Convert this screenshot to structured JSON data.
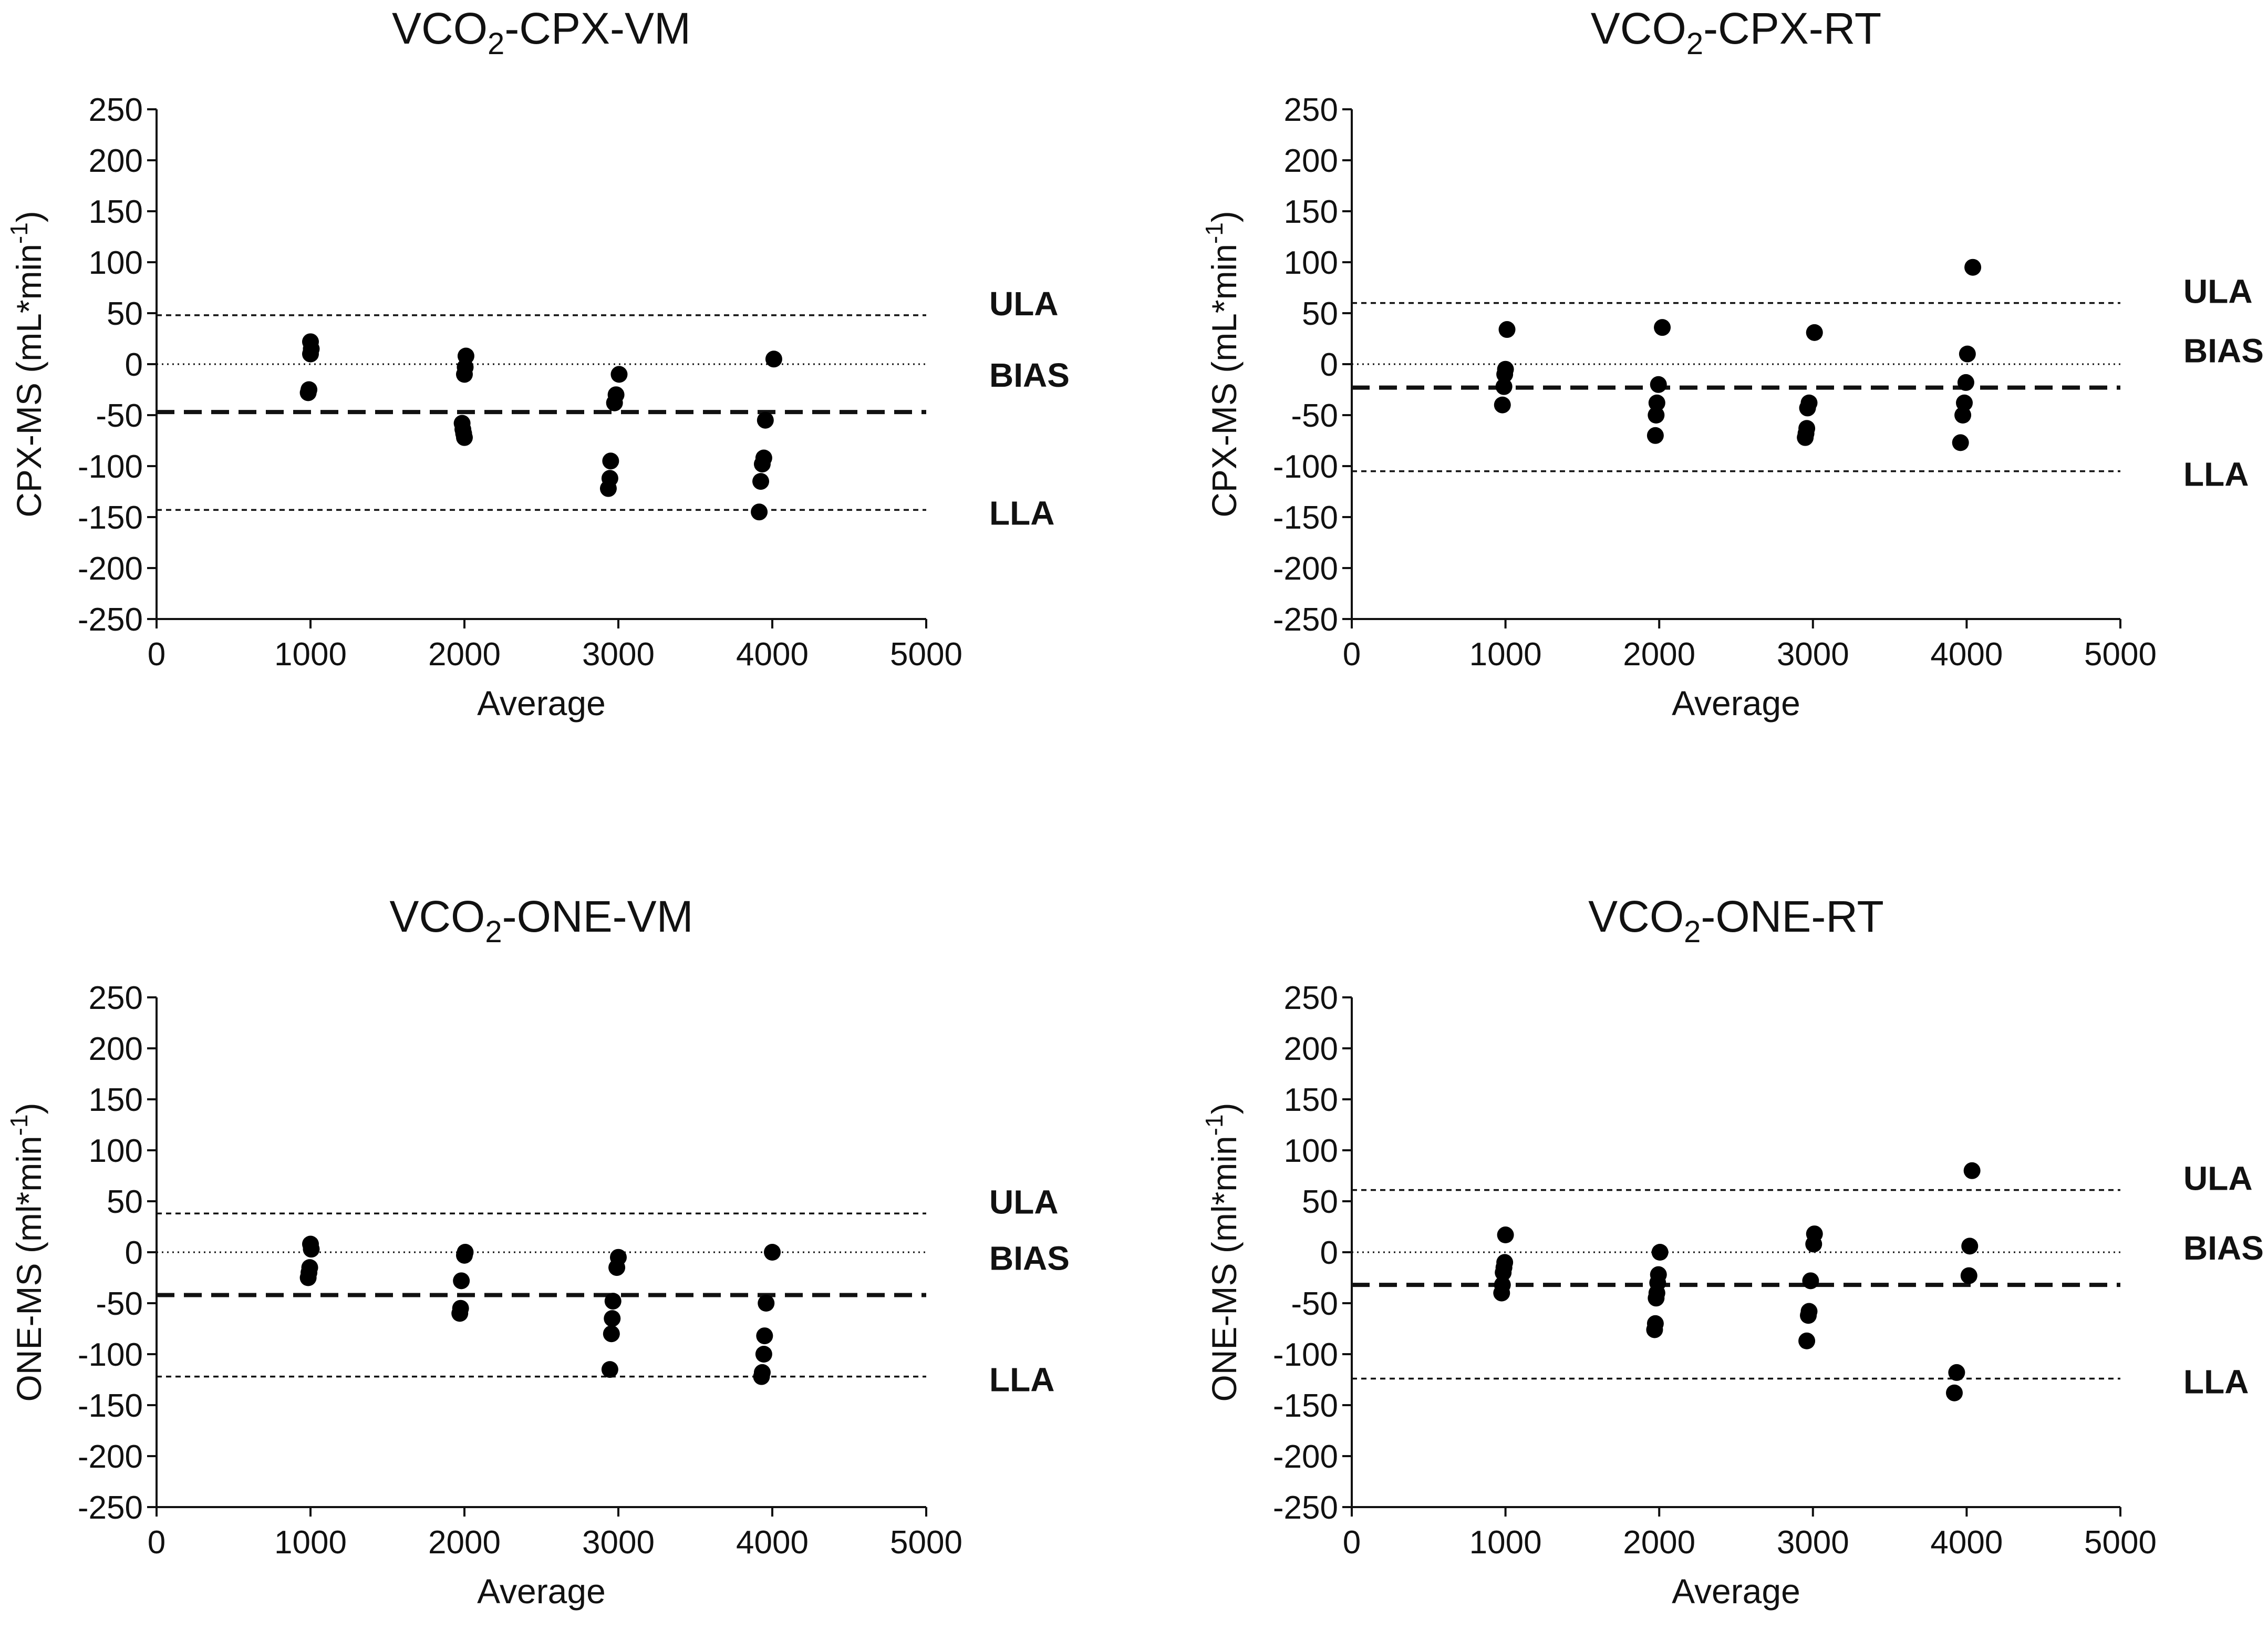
{
  "chart_data": [
    {
      "type": "scatter",
      "title": {
        "prefix": "VCO",
        "sub": "2",
        "suffix": "-CPX-VM"
      },
      "xlabel": "Average",
      "ylabel": {
        "base": "CPX-MS (mL*min",
        "sup": "-1",
        "close": ")"
      },
      "xlim": [
        0,
        5000
      ],
      "ylim": [
        -250,
        250
      ],
      "xticks": [
        "0",
        "1000",
        "2000",
        "3000",
        "4000",
        "5000"
      ],
      "yticks": [
        "250",
        "200",
        "150",
        "100",
        "50",
        "0",
        "-50",
        "-100",
        "-150",
        "-200",
        "-250"
      ],
      "lines": {
        "ULA": 48,
        "BIAS": -47,
        "LLA": -143,
        "zero": 0
      },
      "line_labels": {
        "ULA": "ULA",
        "BIAS": "BIAS",
        "LLA": "LLA"
      },
      "points": [
        [
          1000,
          22
        ],
        [
          1005,
          15
        ],
        [
          1000,
          10
        ],
        [
          990,
          -25
        ],
        [
          985,
          -28
        ],
        [
          2010,
          8
        ],
        [
          2005,
          -3
        ],
        [
          2000,
          -10
        ],
        [
          1985,
          -58
        ],
        [
          1990,
          -64
        ],
        [
          1995,
          -68
        ],
        [
          2000,
          -72
        ],
        [
          3005,
          -10
        ],
        [
          2985,
          -30
        ],
        [
          2975,
          -38
        ],
        [
          2950,
          -95
        ],
        [
          2945,
          -112
        ],
        [
          2935,
          -122
        ],
        [
          4010,
          5
        ],
        [
          3955,
          -55
        ],
        [
          3945,
          -92
        ],
        [
          3935,
          -98
        ],
        [
          3925,
          -115
        ],
        [
          3915,
          -145
        ]
      ]
    },
    {
      "type": "scatter",
      "title": {
        "prefix": "VCO",
        "sub": "2",
        "suffix": "-CPX-RT"
      },
      "xlabel": "Average",
      "ylabel": {
        "base": "CPX-MS (mL*min",
        "sup": "-1",
        "close": ")"
      },
      "xlim": [
        0,
        5000
      ],
      "ylim": [
        -250,
        250
      ],
      "xticks": [
        "0",
        "1000",
        "2000",
        "3000",
        "4000",
        "5000"
      ],
      "yticks": [
        "250",
        "200",
        "150",
        "100",
        "50",
        "0",
        "-50",
        "-100",
        "-150",
        "-200",
        "-250"
      ],
      "lines": {
        "ULA": 60,
        "BIAS": -23,
        "LLA": -105,
        "zero": 0
      },
      "line_labels": {
        "ULA": "ULA",
        "BIAS": "BIAS",
        "LLA": "LLA"
      },
      "points": [
        [
          1010,
          34
        ],
        [
          1000,
          -5
        ],
        [
          995,
          -10
        ],
        [
          990,
          -22
        ],
        [
          980,
          -40
        ],
        [
          2020,
          36
        ],
        [
          1995,
          -20
        ],
        [
          1985,
          -38
        ],
        [
          1980,
          -50
        ],
        [
          1975,
          -70
        ],
        [
          3010,
          31
        ],
        [
          2975,
          -38
        ],
        [
          2965,
          -43
        ],
        [
          2960,
          -63
        ],
        [
          2955,
          -68
        ],
        [
          2950,
          -72
        ],
        [
          4040,
          95
        ],
        [
          4005,
          10
        ],
        [
          3995,
          -18
        ],
        [
          3985,
          -38
        ],
        [
          3975,
          -50
        ],
        [
          3960,
          -77
        ]
      ]
    },
    {
      "type": "scatter",
      "title": {
        "prefix": "VCO",
        "sub": "2",
        "suffix": "-ONE-VM"
      },
      "xlabel": "Average",
      "ylabel": {
        "base": "ONE-MS (ml*min",
        "sup": "-1",
        "close": ")"
      },
      "xlim": [
        0,
        5000
      ],
      "ylim": [
        -250,
        250
      ],
      "xticks": [
        "0",
        "1000",
        "2000",
        "3000",
        "4000",
        "5000"
      ],
      "yticks": [
        "250",
        "200",
        "150",
        "100",
        "50",
        "0",
        "-50",
        "-100",
        "-150",
        "-200",
        "-250"
      ],
      "lines": {
        "ULA": 38,
        "BIAS": -42,
        "LLA": -122,
        "zero": 0
      },
      "line_labels": {
        "ULA": "ULA",
        "BIAS": "BIAS",
        "LLA": "LLA"
      },
      "points": [
        [
          1000,
          8
        ],
        [
          1005,
          3
        ],
        [
          995,
          -15
        ],
        [
          990,
          -20
        ],
        [
          985,
          -25
        ],
        [
          2005,
          0
        ],
        [
          2000,
          -3
        ],
        [
          1980,
          -28
        ],
        [
          1975,
          -55
        ],
        [
          1970,
          -60
        ],
        [
          3000,
          -5
        ],
        [
          2990,
          -15
        ],
        [
          2965,
          -48
        ],
        [
          2960,
          -65
        ],
        [
          2955,
          -80
        ],
        [
          2945,
          -115
        ],
        [
          4000,
          0
        ],
        [
          3960,
          -50
        ],
        [
          3950,
          -82
        ],
        [
          3945,
          -100
        ],
        [
          3935,
          -118
        ],
        [
          3930,
          -122
        ]
      ]
    },
    {
      "type": "scatter",
      "title": {
        "prefix": "VCO",
        "sub": "2",
        "suffix": "-ONE-RT"
      },
      "xlabel": "Average",
      "ylabel": {
        "base": "ONE-MS (ml*min",
        "sup": "-1",
        "close": ")"
      },
      "xlim": [
        0,
        5000
      ],
      "ylim": [
        -250,
        250
      ],
      "xticks": [
        "0",
        "1000",
        "2000",
        "3000",
        "4000",
        "5000"
      ],
      "yticks": [
        "250",
        "200",
        "150",
        "100",
        "50",
        "0",
        "-50",
        "-100",
        "-150",
        "-200",
        "-250"
      ],
      "lines": {
        "ULA": 61,
        "BIAS": -32,
        "LLA": -124,
        "zero": 0
      },
      "line_labels": {
        "ULA": "ULA",
        "BIAS": "BIAS",
        "LLA": "LLA"
      },
      "points": [
        [
          1000,
          17
        ],
        [
          995,
          -10
        ],
        [
          990,
          -15
        ],
        [
          985,
          -20
        ],
        [
          980,
          -32
        ],
        [
          975,
          -40
        ],
        [
          2005,
          0
        ],
        [
          1995,
          -22
        ],
        [
          1990,
          -30
        ],
        [
          1985,
          -40
        ],
        [
          1980,
          -45
        ],
        [
          1975,
          -70
        ],
        [
          1970,
          -76
        ],
        [
          3010,
          18
        ],
        [
          3005,
          8
        ],
        [
          2985,
          -28
        ],
        [
          2975,
          -58
        ],
        [
          2970,
          -62
        ],
        [
          2960,
          -87
        ],
        [
          4035,
          80
        ],
        [
          4020,
          6
        ],
        [
          4015,
          -23
        ],
        [
          3935,
          -118
        ],
        [
          3920,
          -138
        ]
      ]
    }
  ]
}
